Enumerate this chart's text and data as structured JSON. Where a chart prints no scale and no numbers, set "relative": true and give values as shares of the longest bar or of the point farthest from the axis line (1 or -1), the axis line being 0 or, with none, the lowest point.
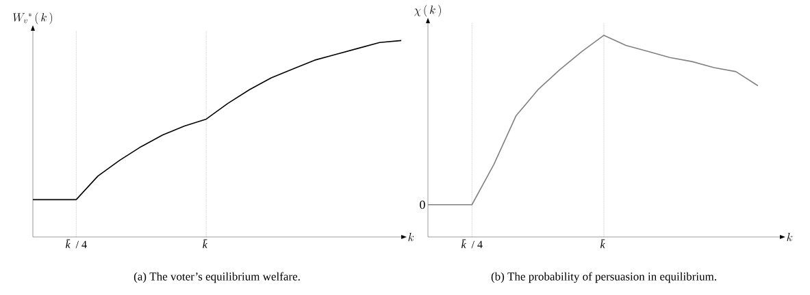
{
  "chart_data": [
    {
      "type": "line",
      "title": "(a) The voter’s equilibrium welfare.",
      "ylabel": "W_{v}{}^{*}\\,(\\,k\\,)",
      "xlabel": "k",
      "relative": true,
      "color": "#000000",
      "categories": [
        null,
        null,
        "*k̄* / 4",
        null,
        null,
        null,
        null,
        null,
        "*k̄*",
        null,
        null,
        null,
        null,
        null,
        null,
        null,
        null,
        null
      ],
      "values": [
        0.19,
        0.19,
        0.19,
        0.31,
        0.39,
        0.46,
        0.52,
        0.565,
        0.6,
        0.68,
        0.75,
        0.81,
        0.855,
        0.9,
        0.93,
        0.96,
        0.99,
        1
      ],
      "ref_lines": [
        {
          "axis": "x",
          "value": "*k̄* / 4",
          "color": "#808080",
          "line_style": "dotted"
        },
        {
          "axis": "x",
          "value": "*k̄*",
          "color": "#808080",
          "line_style": "dotted"
        }
      ]
    },
    {
      "type": "line",
      "title": "(b) The probability of persuasion in equilibrium.",
      "ylabel": "\\chi\\,(\\,k\\,)",
      "xlabel": "k",
      "relative": true,
      "color": "#808080",
      "categories": [
        null,
        null,
        "*k̄* / 4",
        null,
        null,
        null,
        null,
        null,
        "*k̄*",
        null,
        null,
        null,
        null,
        null,
        null,
        null,
        null
      ],
      "values": [
        0.16,
        0.16,
        0.16,
        0.36,
        0.6,
        0.73,
        0.83,
        0.92,
        1,
        0.95,
        0.92,
        0.89,
        0.87,
        0.84,
        0.82,
        0.75,
        null
      ],
      "annotations": [
        "0"
      ],
      "ref_lines": [
        {
          "axis": "x",
          "value": "*k̄* / 4",
          "color": "#808080",
          "line_style": "dotted"
        },
        {
          "axis": "x",
          "value": "*k̄*",
          "color": "#808080",
          "line_style": "dotted"
        }
      ]
    }
  ]
}
